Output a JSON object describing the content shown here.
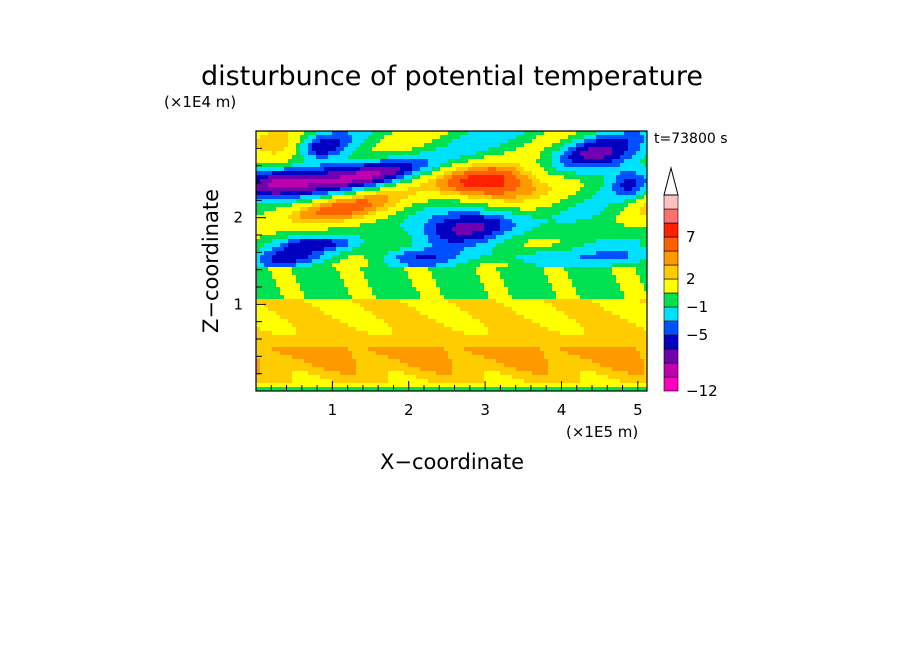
{
  "chart_data": {
    "type": "heatmap",
    "title": "disturbunce of potential temperature",
    "time_label": "t=73800 s",
    "xlabel": "X−coordinate",
    "ylabel": "Z−coordinate",
    "x_unit": "(×1E5 m)",
    "z_unit": "(×1E4 m)",
    "xlim": [
      0,
      5.12
    ],
    "zlim": [
      0,
      3.0
    ],
    "x_ticks": [
      "1",
      "2",
      "3",
      "4",
      "5"
    ],
    "z_ticks": [
      "1",
      "2"
    ],
    "colorbar": {
      "tick_labels": [
        "7",
        "2",
        "−1",
        "−5",
        "−12"
      ],
      "colors": [
        "#ff00c0",
        "#c000b0",
        "#7000b0",
        "#0000c0",
        "#0050ff",
        "#00e0ff",
        "#00e050",
        "#ffff00",
        "#ffcc00",
        "#ff9900",
        "#ff6000",
        "#ff2000",
        "#ff7070",
        "#ffc0c0",
        "#ffffff"
      ]
    }
  }
}
